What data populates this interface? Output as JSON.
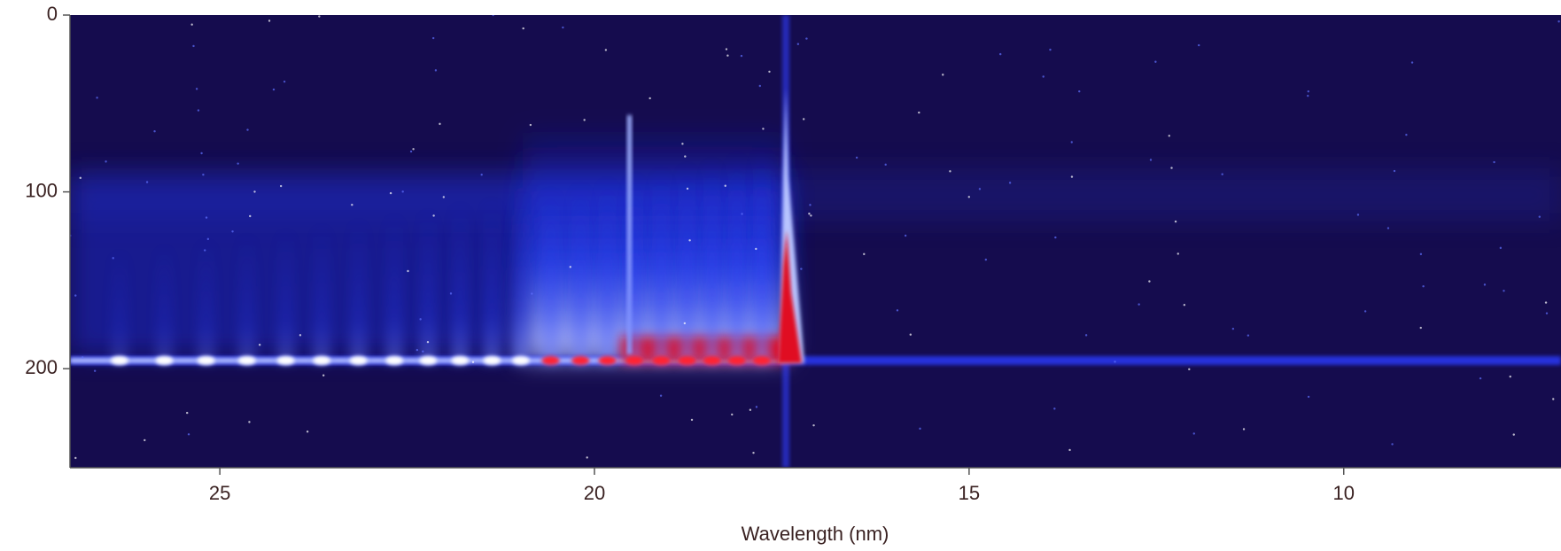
{
  "chart_data": {
    "type": "heatmap",
    "x_label": "Wavelength (nm)",
    "xlim": [
      27,
      7.1
    ],
    "xticks": [
      25,
      20,
      15,
      10
    ],
    "ylim": [
      0,
      256
    ],
    "yticks": [
      0,
      100,
      200
    ]
  }
}
